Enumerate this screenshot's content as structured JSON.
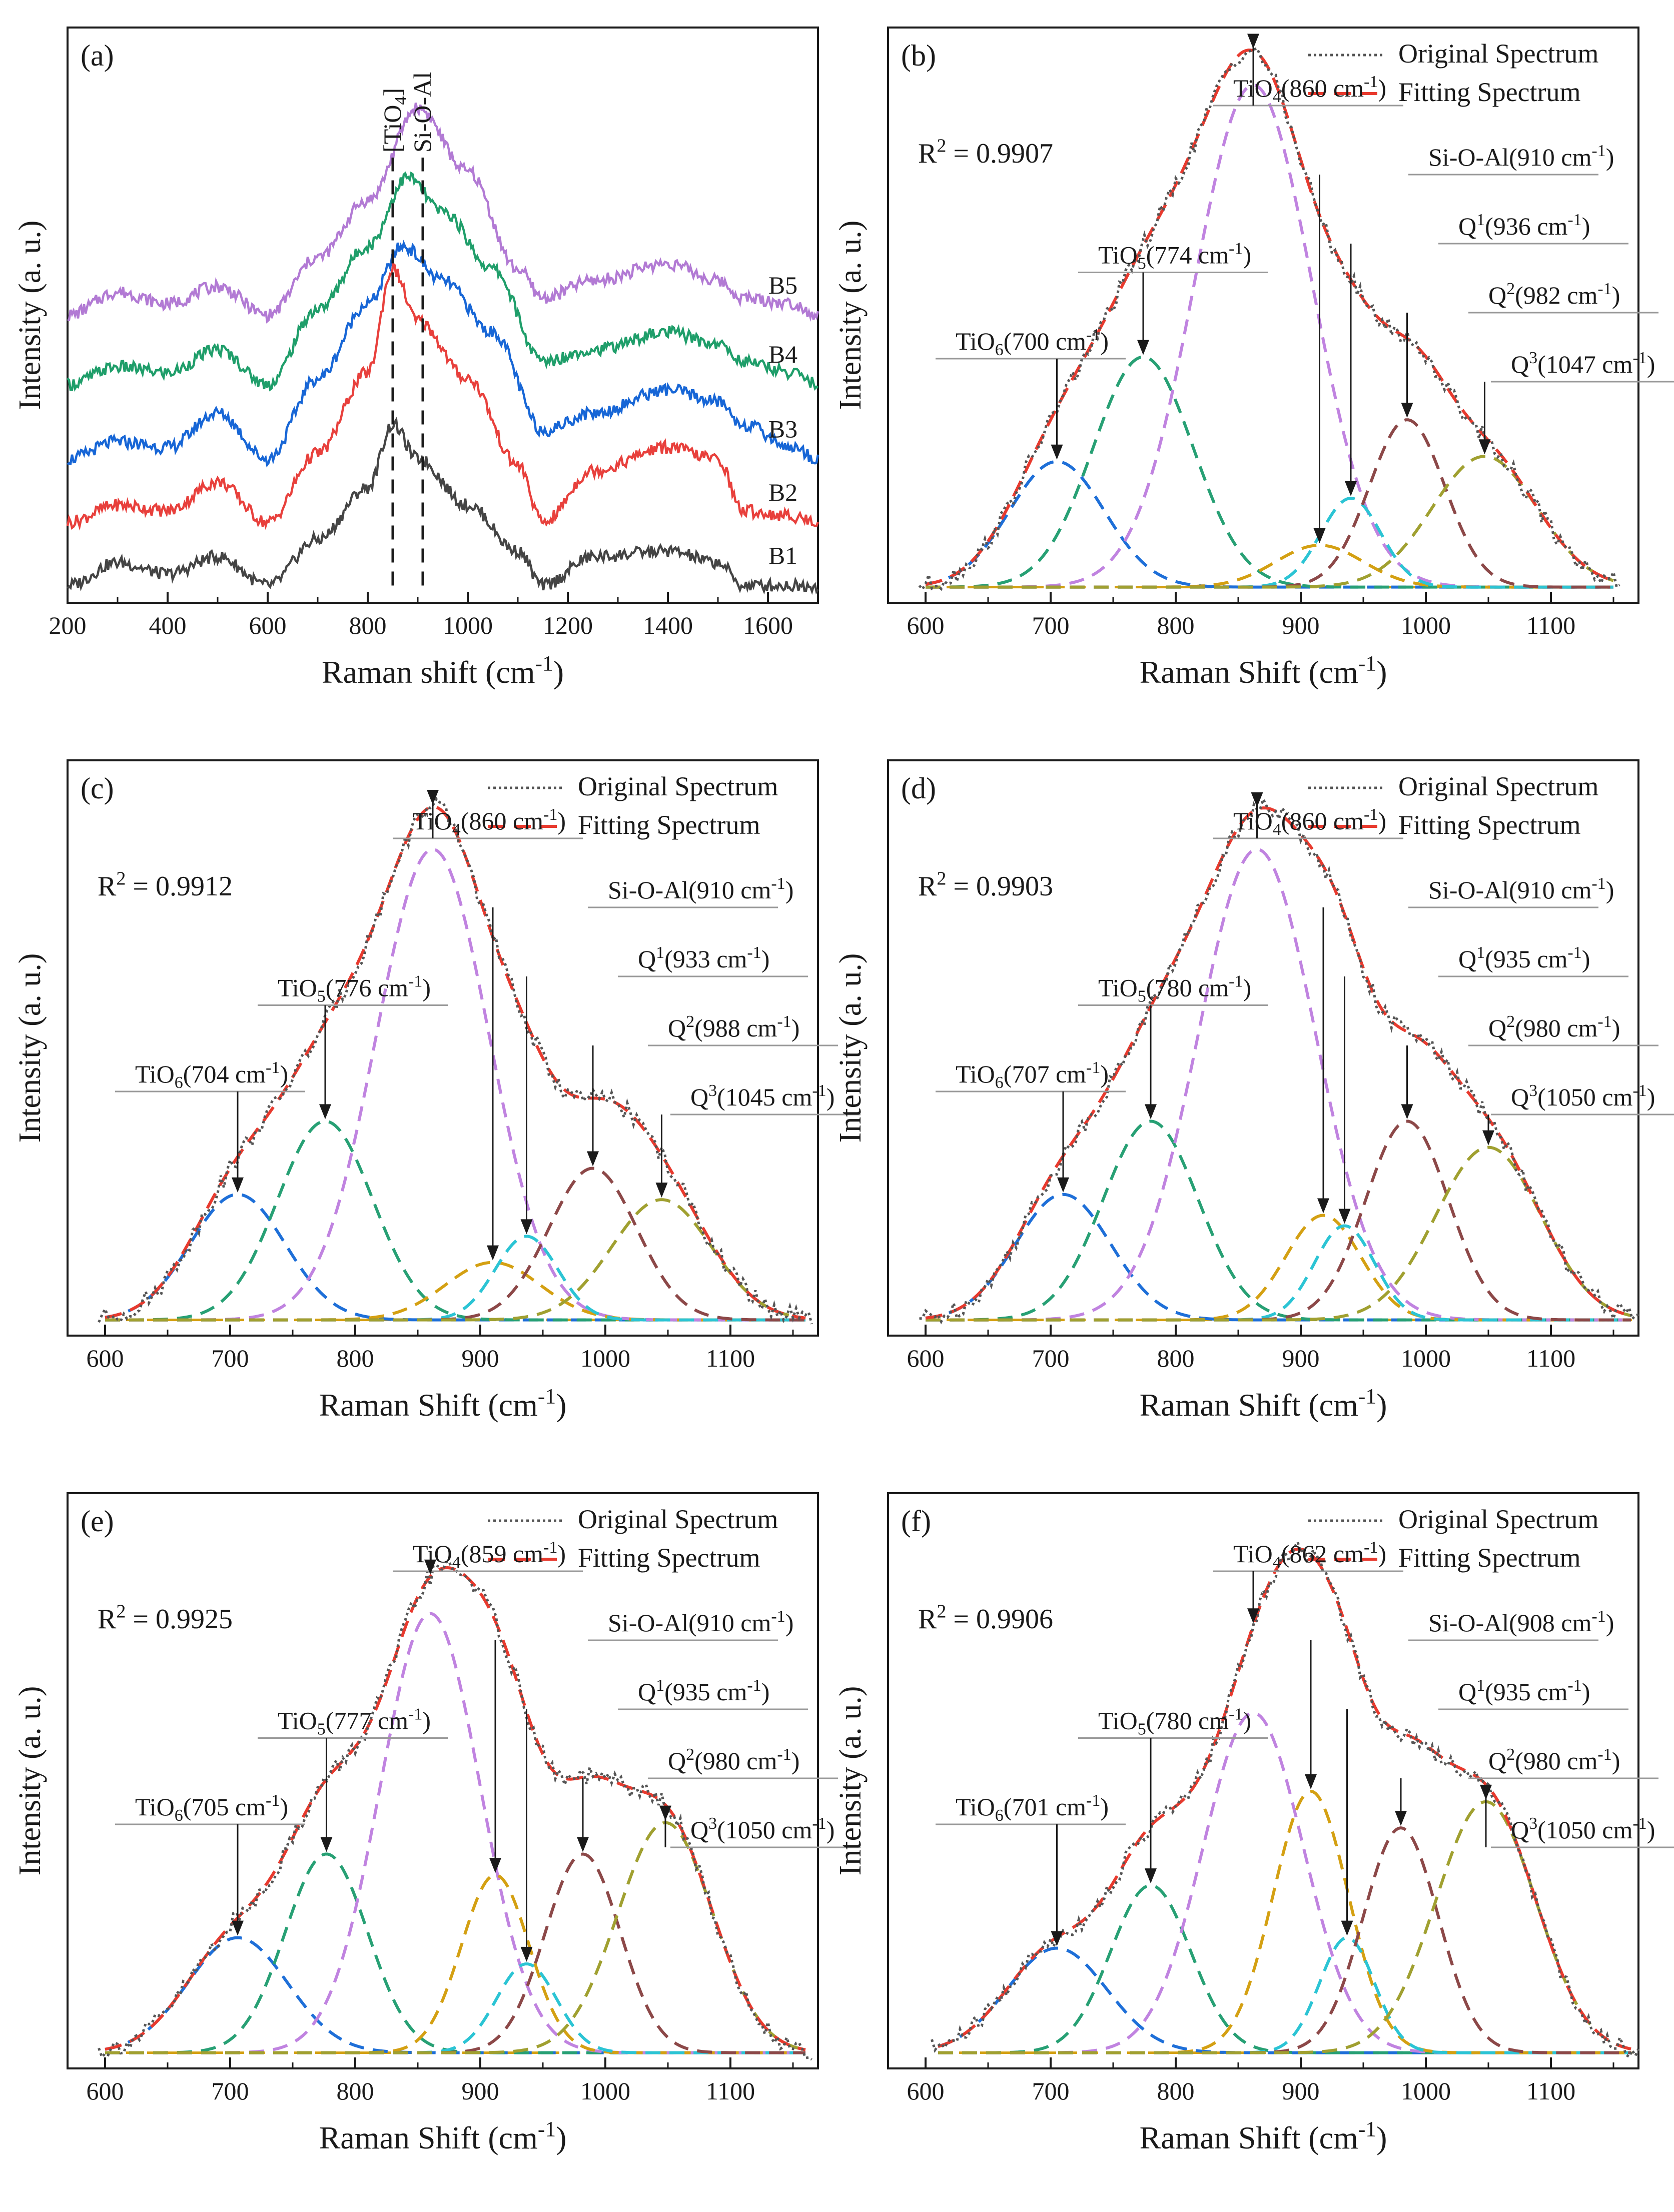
{
  "colors": {
    "B1": "#444444",
    "B2": "#e8403c",
    "B3": "#1766d6",
    "B4": "#1f9e6a",
    "B5": "#b27ad4",
    "original": "#555555",
    "fitting": "#e83a2e",
    "TiO6": "#1e6fd8",
    "TiO5": "#27a074",
    "TiO4": "#c083e0",
    "SiOAl": "#d4a012",
    "Q1": "#2bc4d4",
    "Q2": "#8c4848",
    "Q3": "#a0a030",
    "baseline": "#d4a012"
  },
  "chart_data": [
    {
      "id": "a",
      "type": "line",
      "panel_label": "(a)",
      "xlabel": "Raman shift (cm-1)",
      "ylabel": "Intensity (a. u.)",
      "xlim": [
        200,
        1700
      ],
      "ylim": [
        0,
        1
      ],
      "xticks": [
        "200",
        "400",
        "600",
        "800",
        "1000",
        "1200",
        "1400",
        "1600"
      ],
      "markers": [
        {
          "label": "[TiO4]",
          "x": 850
        },
        {
          "label": "Si-O-Al",
          "x": 910
        }
      ],
      "series": [
        {
          "name": "B1",
          "offset": 0.03,
          "x": [
            200,
            300,
            400,
            500,
            600,
            700,
            800,
            850,
            900,
            1000,
            1100,
            1150,
            1250,
            1400,
            1500,
            1550,
            1650,
            1700
          ],
          "values": [
            0.0,
            0.04,
            0.02,
            0.05,
            0.0,
            0.08,
            0.17,
            0.28,
            0.22,
            0.14,
            0.06,
            0.0,
            0.05,
            0.06,
            0.04,
            0.0,
            0.0,
            0.0
          ]
        },
        {
          "name": "B2",
          "offset": 0.14,
          "x": [
            200,
            300,
            400,
            500,
            600,
            700,
            800,
            850,
            900,
            1000,
            1100,
            1150,
            1250,
            1400,
            1500,
            1550,
            1650,
            1700
          ],
          "values": [
            0.0,
            0.03,
            0.02,
            0.07,
            0.0,
            0.12,
            0.26,
            0.44,
            0.35,
            0.25,
            0.1,
            0.0,
            0.09,
            0.13,
            0.11,
            0.02,
            0.01,
            0.0
          ]
        },
        {
          "name": "B3",
          "offset": 0.25,
          "x": [
            200,
            300,
            400,
            500,
            600,
            700,
            800,
            870,
            950,
            1050,
            1150,
            1250,
            1400,
            1500,
            1550,
            1650,
            1700
          ],
          "values": [
            0.0,
            0.03,
            0.02,
            0.08,
            0.0,
            0.14,
            0.27,
            0.37,
            0.31,
            0.22,
            0.05,
            0.08,
            0.12,
            0.1,
            0.06,
            0.02,
            0.0
          ]
        },
        {
          "name": "B4",
          "offset": 0.38,
          "x": [
            200,
            300,
            400,
            500,
            600,
            700,
            800,
            880,
            950,
            1050,
            1150,
            1250,
            1400,
            1500,
            1550,
            1650,
            1700
          ],
          "values": [
            0.0,
            0.03,
            0.02,
            0.06,
            0.0,
            0.13,
            0.24,
            0.36,
            0.3,
            0.2,
            0.04,
            0.06,
            0.09,
            0.07,
            0.04,
            0.02,
            0.0
          ]
        },
        {
          "name": "B5",
          "offset": 0.5,
          "x": [
            200,
            300,
            400,
            500,
            600,
            700,
            800,
            900,
            1000,
            1100,
            1150,
            1250,
            1400,
            1500,
            1550,
            1650,
            1700
          ],
          "values": [
            0.0,
            0.04,
            0.02,
            0.05,
            0.0,
            0.1,
            0.2,
            0.36,
            0.25,
            0.08,
            0.03,
            0.06,
            0.09,
            0.06,
            0.03,
            0.02,
            0.0
          ]
        }
      ]
    },
    {
      "id": "b",
      "type": "line",
      "panel_label": "(b)",
      "r2": "R2 = 0.9907",
      "xlabel": "Raman Shift (cm-1)",
      "ylabel": "Intensity (a. u.)",
      "xlim": [
        570,
        1170
      ],
      "ylim": [
        0,
        1.1
      ],
      "xticks": [
        "600",
        "700",
        "800",
        "900",
        "1000",
        "1100"
      ],
      "legend": [
        "Original Spectrum",
        "Fitting Spectrum"
      ],
      "range": [
        600,
        1150
      ],
      "peaks": [
        {
          "name": "TiO6",
          "label": "TiO6(700 cm-1)",
          "center": 705,
          "height": 0.24,
          "width": 38
        },
        {
          "name": "TiO5",
          "label": "TiO5(774 cm-1)",
          "center": 774,
          "height": 0.44,
          "width": 40
        },
        {
          "name": "TiO4",
          "label": "TiO4(860 cm-1)",
          "center": 862,
          "height": 0.96,
          "width": 47
        },
        {
          "name": "SiOAl",
          "label": "Si-O-Al(910 cm-1)",
          "center": 915,
          "height": 0.08,
          "width": 35
        },
        {
          "name": "Q1",
          "label": "Q1(936 cm-1)",
          "center": 940,
          "height": 0.17,
          "width": 24
        },
        {
          "name": "Q2",
          "label": "Q2(982 cm-1)",
          "center": 985,
          "height": 0.32,
          "width": 30
        },
        {
          "name": "Q3",
          "label": "Q3(1047 cm-1)",
          "center": 1047,
          "height": 0.25,
          "width": 42
        }
      ]
    },
    {
      "id": "c",
      "type": "line",
      "panel_label": "(c)",
      "r2": "R2 = 0.9912",
      "xlabel": "Raman Shift (cm-1)",
      "ylabel": "Intensity (a. u.)",
      "xlim": [
        570,
        1170
      ],
      "ylim": [
        0,
        1.1
      ],
      "xticks": [
        "600",
        "700",
        "800",
        "900",
        "1000",
        "1100"
      ],
      "legend": [
        "Original Spectrum",
        "Fitting Spectrum"
      ],
      "range": [
        600,
        1160
      ],
      "peaks": [
        {
          "name": "TiO6",
          "label": "TiO6(704 cm-1)",
          "center": 706,
          "height": 0.24,
          "width": 38
        },
        {
          "name": "TiO5",
          "label": "TiO5(776 cm-1)",
          "center": 776,
          "height": 0.38,
          "width": 38
        },
        {
          "name": "TiO4",
          "label": "TiO4(860 cm-1)",
          "center": 862,
          "height": 0.9,
          "width": 45
        },
        {
          "name": "SiOAl",
          "label": "Si-O-Al(910 cm-1)",
          "center": 910,
          "height": 0.11,
          "width": 38
        },
        {
          "name": "Q1",
          "label": "Q1(933 cm-1)",
          "center": 937,
          "height": 0.16,
          "width": 25
        },
        {
          "name": "Q2",
          "label": "Q2(988 cm-1)",
          "center": 990,
          "height": 0.29,
          "width": 35
        },
        {
          "name": "Q3",
          "label": "Q3(1045 cm-1)",
          "center": 1045,
          "height": 0.23,
          "width": 40
        }
      ]
    },
    {
      "id": "d",
      "type": "line",
      "panel_label": "(d)",
      "r2": "R2 = 0.9903",
      "xlabel": "Raman Shift (cm-1)",
      "ylabel": "Intensity (a. u.)",
      "xlim": [
        570,
        1170
      ],
      "ylim": [
        0,
        1.1
      ],
      "xticks": [
        "600",
        "700",
        "800",
        "900",
        "1000",
        "1100"
      ],
      "legend": [
        "Original Spectrum",
        "Fitting Spectrum"
      ],
      "range": [
        600,
        1165
      ],
      "peaks": [
        {
          "name": "TiO6",
          "label": "TiO6(707 cm-1)",
          "center": 710,
          "height": 0.24,
          "width": 38
        },
        {
          "name": "TiO5",
          "label": "TiO5(780 cm-1)",
          "center": 780,
          "height": 0.38,
          "width": 38
        },
        {
          "name": "TiO4",
          "label": "TiO4(860 cm-1)",
          "center": 865,
          "height": 0.9,
          "width": 47
        },
        {
          "name": "SiOAl",
          "label": "Si-O-Al(910 cm-1)",
          "center": 918,
          "height": 0.2,
          "width": 30
        },
        {
          "name": "Q1",
          "label": "Q1(935 cm-1)",
          "center": 935,
          "height": 0.18,
          "width": 24
        },
        {
          "name": "Q2",
          "label": "Q2(980 cm-1)",
          "center": 985,
          "height": 0.38,
          "width": 33
        },
        {
          "name": "Q3",
          "label": "Q3(1050 cm-1)",
          "center": 1050,
          "height": 0.33,
          "width": 42
        }
      ]
    },
    {
      "id": "e",
      "type": "line",
      "panel_label": "(e)",
      "r2": "R2 = 0.9925",
      "xlabel": "Raman Shift (cm-1)",
      "ylabel": "Intensity (a. u.)",
      "xlim": [
        570,
        1170
      ],
      "ylim": [
        0,
        1.1
      ],
      "xticks": [
        "600",
        "700",
        "800",
        "900",
        "1000",
        "1100"
      ],
      "legend": [
        "Original Spectrum",
        "Fitting Spectrum"
      ],
      "range": [
        600,
        1160
      ],
      "peaks": [
        {
          "name": "TiO6",
          "label": "TiO6(705 cm-1)",
          "center": 706,
          "height": 0.22,
          "width": 40
        },
        {
          "name": "TiO5",
          "label": "TiO5(777 cm-1)",
          "center": 777,
          "height": 0.38,
          "width": 33
        },
        {
          "name": "TiO4",
          "label": "TiO4(859 cm-1)",
          "center": 860,
          "height": 0.84,
          "width": 40
        },
        {
          "name": "SiOAl",
          "label": "Si-O-Al(910 cm-1)",
          "center": 912,
          "height": 0.34,
          "width": 27
        },
        {
          "name": "Q1",
          "label": "Q1(935 cm-1)",
          "center": 937,
          "height": 0.17,
          "width": 24
        },
        {
          "name": "Q2",
          "label": "Q2(980 cm-1)",
          "center": 982,
          "height": 0.38,
          "width": 30
        },
        {
          "name": "Q3",
          "label": "Q3(1050 cm-1)",
          "center": 1048,
          "height": 0.44,
          "width": 38
        }
      ]
    },
    {
      "id": "f",
      "type": "line",
      "panel_label": "(f)",
      "r2": "R2 = 0.9906",
      "xlabel": "Raman Shift (cm-1)",
      "ylabel": "Intensity (a. u.)",
      "xlim": [
        570,
        1170
      ],
      "ylim": [
        0,
        1.1
      ],
      "xticks": [
        "600",
        "700",
        "800",
        "900",
        "1000",
        "1100"
      ],
      "legend": [
        "Original Spectrum",
        "Fitting Spectrum"
      ],
      "range": [
        610,
        1165
      ],
      "peaks": [
        {
          "name": "TiO6",
          "label": "TiO6(701 cm-1)",
          "center": 705,
          "height": 0.2,
          "width": 40
        },
        {
          "name": "TiO5",
          "label": "TiO5(780 cm-1)",
          "center": 780,
          "height": 0.32,
          "width": 32
        },
        {
          "name": "TiO4",
          "label": "TiO4(862 cm-1)",
          "center": 862,
          "height": 0.65,
          "width": 40
        },
        {
          "name": "SiOAl",
          "label": "Si-O-Al(908 cm-1)",
          "center": 908,
          "height": 0.5,
          "width": 30
        },
        {
          "name": "Q1",
          "label": "Q1(935 cm-1)",
          "center": 937,
          "height": 0.22,
          "width": 22
        },
        {
          "name": "Q2",
          "label": "Q2(980 cm-1)",
          "center": 980,
          "height": 0.43,
          "width": 30
        },
        {
          "name": "Q3",
          "label": "Q3(1050 cm-1)",
          "center": 1048,
          "height": 0.48,
          "width": 40
        }
      ]
    }
  ]
}
